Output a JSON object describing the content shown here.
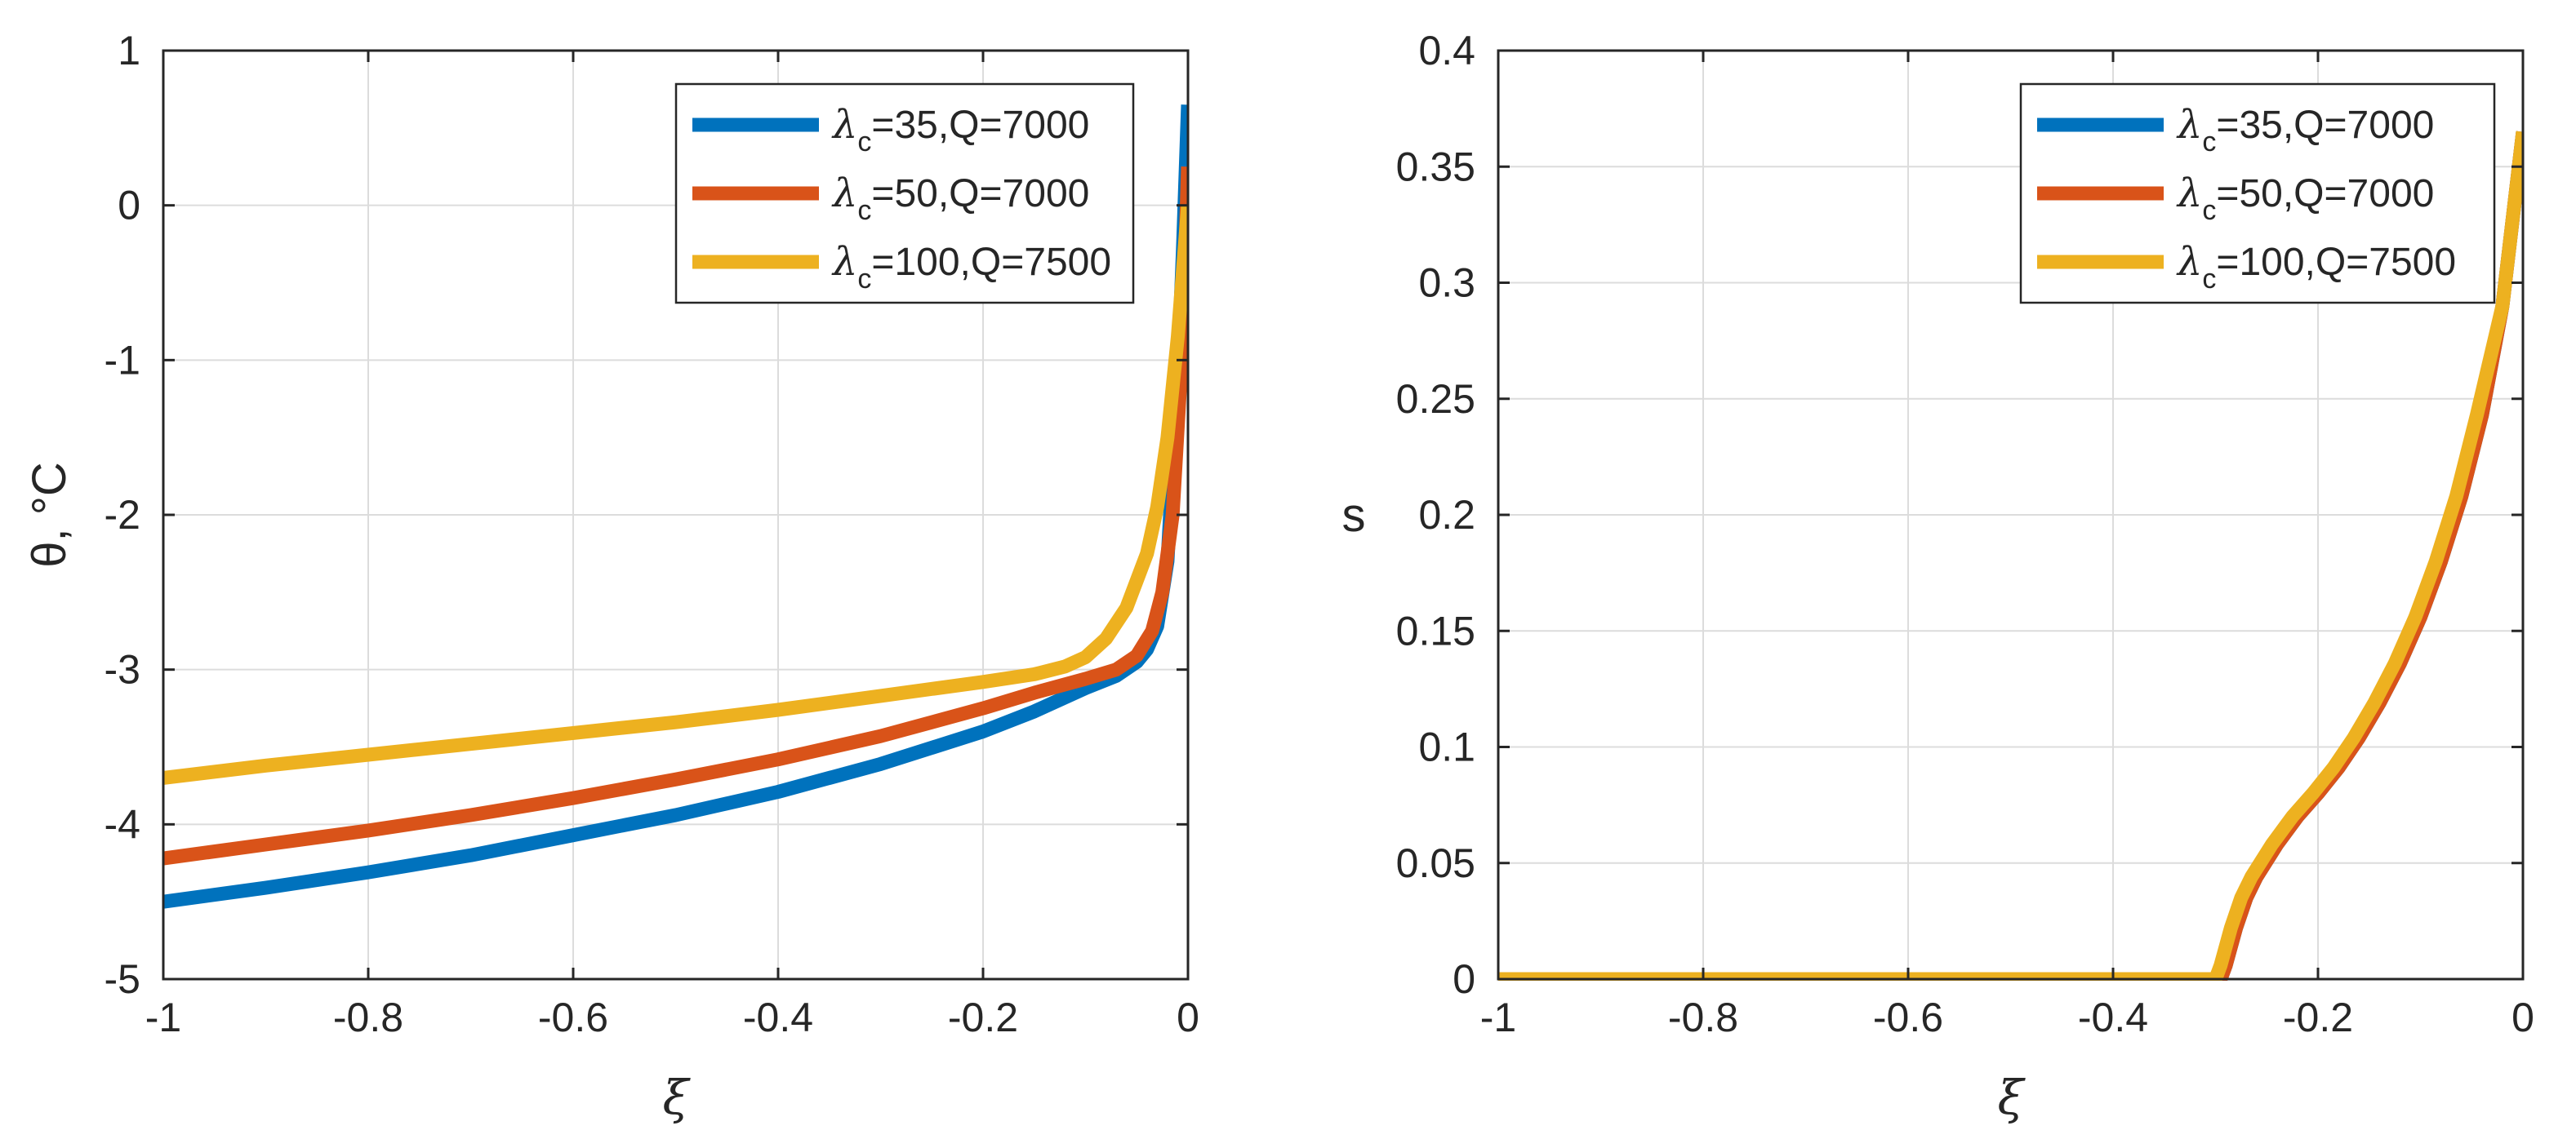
{
  "chart_data": [
    {
      "type": "line",
      "xlabel": "ξ",
      "ylabel": "θ, °C",
      "xlim": [
        -1,
        0
      ],
      "ylim": [
        -5,
        1
      ],
      "xticks": [
        -1,
        -0.8,
        -0.6,
        -0.4,
        -0.2,
        0
      ],
      "xtick_labels": [
        "-1",
        "-0.8",
        "-0.6",
        "-0.4",
        "-0.2",
        "0"
      ],
      "yticks": [
        -5,
        -4,
        -3,
        -2,
        -1,
        0,
        1
      ],
      "ytick_labels": [
        "-5",
        "-4",
        "-3",
        "-2",
        "-1",
        "0",
        "1"
      ],
      "grid": true,
      "legend_position": "top-right",
      "series": [
        {
          "name": "λc=35,Q=7000",
          "legend_prefix": "λ",
          "legend_sub": "c",
          "legend_suffix": "=35,Q=7000",
          "color": "#0072BD",
          "x": [
            -1,
            -0.9,
            -0.8,
            -0.7,
            -0.6,
            -0.5,
            -0.4,
            -0.3,
            -0.2,
            -0.15,
            -0.1,
            -0.07,
            -0.05,
            -0.04,
            -0.03,
            -0.02,
            -0.01,
            -0.005,
            0
          ],
          "y": [
            -4.5,
            -4.41,
            -4.31,
            -4.2,
            -4.07,
            -3.94,
            -3.79,
            -3.61,
            -3.4,
            -3.27,
            -3.12,
            -3.04,
            -2.95,
            -2.87,
            -2.72,
            -2.3,
            -1.1,
            -0.3,
            0.65
          ]
        },
        {
          "name": "λc=50,Q=7000",
          "legend_prefix": "λ",
          "legend_sub": "c",
          "legend_suffix": "=50,Q=7000",
          "color": "#D95319",
          "x": [
            -1,
            -0.9,
            -0.8,
            -0.7,
            -0.6,
            -0.5,
            -0.4,
            -0.3,
            -0.2,
            -0.15,
            -0.1,
            -0.07,
            -0.05,
            -0.035,
            -0.025,
            -0.015,
            -0.008,
            -0.003,
            0
          ],
          "y": [
            -4.22,
            -4.13,
            -4.04,
            -3.94,
            -3.83,
            -3.71,
            -3.58,
            -3.43,
            -3.25,
            -3.15,
            -3.06,
            -3.0,
            -2.91,
            -2.75,
            -2.5,
            -2.0,
            -1.2,
            -0.4,
            0.25
          ]
        },
        {
          "name": "λc=100,Q=7500",
          "legend_prefix": "λ",
          "legend_sub": "c",
          "legend_suffix": "=100,Q=7500",
          "color": "#EDB120",
          "x": [
            -1,
            -0.9,
            -0.8,
            -0.7,
            -0.6,
            -0.5,
            -0.4,
            -0.3,
            -0.2,
            -0.15,
            -0.12,
            -0.1,
            -0.08,
            -0.06,
            -0.04,
            -0.03,
            -0.02,
            -0.01,
            0
          ],
          "y": [
            -3.7,
            -3.62,
            -3.55,
            -3.48,
            -3.41,
            -3.34,
            -3.26,
            -3.17,
            -3.08,
            -3.03,
            -2.98,
            -2.92,
            -2.8,
            -2.6,
            -2.25,
            -1.95,
            -1.5,
            -0.85,
            0.0
          ]
        }
      ]
    },
    {
      "type": "line",
      "xlabel": "ξ",
      "ylabel": "s",
      "xlim": [
        -1,
        0
      ],
      "ylim": [
        0,
        0.4
      ],
      "xticks": [
        -1,
        -0.8,
        -0.6,
        -0.4,
        -0.2,
        0
      ],
      "xtick_labels": [
        "-1",
        "-0.8",
        "-0.6",
        "-0.4",
        "-0.2",
        "0"
      ],
      "yticks": [
        0,
        0.05,
        0.1,
        0.15,
        0.2,
        0.25,
        0.3,
        0.35,
        0.4
      ],
      "ytick_labels": [
        "0",
        "0.05",
        "0.1",
        "0.15",
        "0.2",
        "0.25",
        "0.3",
        "0.35",
        "0.4"
      ],
      "grid": true,
      "legend_position": "top-right",
      "series": [
        {
          "name": "λc=35,Q=7000",
          "legend_prefix": "λ",
          "legend_sub": "c",
          "legend_suffix": "=35,Q=7000",
          "color": "#0072BD",
          "x": [
            -1,
            -0.5,
            -0.295,
            -0.29,
            -0.28,
            -0.27,
            -0.26,
            -0.24,
            -0.22,
            -0.2,
            -0.18,
            -0.16,
            -0.14,
            -0.12,
            -0.1,
            -0.08,
            -0.06,
            -0.04,
            -0.02,
            0
          ],
          "y": [
            0,
            0,
            0,
            0.006,
            0.022,
            0.035,
            0.044,
            0.058,
            0.07,
            0.08,
            0.091,
            0.104,
            0.119,
            0.136,
            0.156,
            0.18,
            0.208,
            0.243,
            0.29,
            0.365
          ]
        },
        {
          "name": "λc=50,Q=7000",
          "legend_prefix": "λ",
          "legend_sub": "c",
          "legend_suffix": "=50,Q=7000",
          "color": "#D95319",
          "x": [
            -1,
            -0.5,
            -0.295,
            -0.29,
            -0.28,
            -0.27,
            -0.26,
            -0.24,
            -0.22,
            -0.2,
            -0.18,
            -0.16,
            -0.14,
            -0.12,
            -0.1,
            -0.08,
            -0.06,
            -0.04,
            -0.02,
            0
          ],
          "y": [
            0,
            0,
            0,
            0.006,
            0.022,
            0.035,
            0.044,
            0.058,
            0.07,
            0.08,
            0.091,
            0.104,
            0.119,
            0.136,
            0.156,
            0.18,
            0.208,
            0.243,
            0.29,
            0.365
          ]
        },
        {
          "name": "λc=100,Q=7500",
          "legend_prefix": "λ",
          "legend_sub": "c",
          "legend_suffix": "=100,Q=7500",
          "color": "#EDB120",
          "x": [
            -1,
            -0.5,
            -0.3,
            -0.295,
            -0.285,
            -0.275,
            -0.265,
            -0.245,
            -0.225,
            -0.205,
            -0.185,
            -0.165,
            -0.145,
            -0.125,
            -0.105,
            -0.085,
            -0.065,
            -0.045,
            -0.02,
            0
          ],
          "y": [
            0,
            0,
            0,
            0.006,
            0.022,
            0.035,
            0.044,
            0.058,
            0.07,
            0.08,
            0.091,
            0.104,
            0.119,
            0.136,
            0.156,
            0.18,
            0.208,
            0.243,
            0.29,
            0.365
          ]
        }
      ]
    }
  ]
}
